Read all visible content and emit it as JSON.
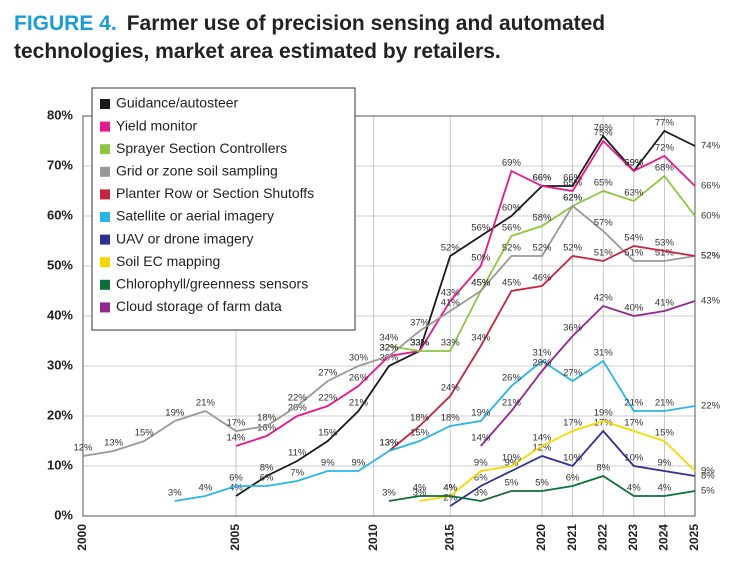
{
  "chart_data": {
    "type": "line",
    "figure_label": "FIGURE 4.",
    "title": "Farmer use of precision sensing and automated technologies, market area estimated by retailers.",
    "x": [
      2000,
      2001,
      2002,
      2003,
      2004,
      2005,
      2006,
      2007,
      2008,
      2009,
      2011,
      2013,
      2015,
      2017,
      2019,
      2020,
      2021,
      2022,
      2023,
      2024,
      2025
    ],
    "xlim": [
      2000,
      2025
    ],
    "xticks": [
      2000,
      2005,
      2010,
      2015,
      2020,
      2021,
      2022,
      2023,
      2024,
      2025
    ],
    "ylim": [
      0,
      80
    ],
    "yticks": [
      {
        "value": 0,
        "label": "0%"
      },
      {
        "value": 10,
        "label": "10%"
      },
      {
        "value": 20,
        "label": "20%"
      },
      {
        "value": 30,
        "label": "30%"
      },
      {
        "value": 40,
        "label": "40%"
      },
      {
        "value": 50,
        "label": "50%"
      },
      {
        "value": 60,
        "label": "60%"
      },
      {
        "value": 70,
        "label": "70%"
      },
      {
        "value": 80,
        "label": "80%"
      }
    ],
    "grid": true,
    "legend": "upper left",
    "series": [
      {
        "name": "Guidance/autosteer",
        "color": "#1a1a1a",
        "values": [
          null,
          null,
          null,
          null,
          null,
          4,
          8,
          11,
          15,
          21,
          30,
          33,
          52,
          56,
          60,
          66,
          66,
          76,
          69,
          77,
          74
        ],
        "value_labels": [
          null,
          null,
          null,
          null,
          null,
          "4%",
          "8%",
          "11%",
          "15%",
          "21%",
          "30%",
          "33%",
          "52%",
          "56%",
          "60%",
          "66%",
          "66%",
          "76%",
          "69%",
          "77%",
          "74%"
        ]
      },
      {
        "name": "Yield monitor",
        "color": "#e6168c",
        "values": [
          null,
          null,
          null,
          null,
          null,
          14,
          16,
          20,
          22,
          26,
          32,
          33,
          43,
          50,
          69,
          66,
          65,
          75,
          69,
          72,
          66
        ],
        "value_labels": [
          null,
          null,
          null,
          null,
          null,
          "14%",
          "16%",
          "20%",
          "22%",
          "26%",
          "32%",
          "33%",
          "43%",
          "50%",
          "69%",
          "66%",
          "65%",
          "75%",
          "69%",
          "72%",
          "66%"
        ]
      },
      {
        "name": "Sprayer Section Controllers",
        "color": "#8dc63f",
        "values": [
          null,
          null,
          null,
          null,
          null,
          null,
          null,
          null,
          null,
          null,
          34,
          33,
          33,
          45,
          56,
          58,
          62,
          65,
          63,
          68,
          60
        ],
        "value_labels": [
          null,
          null,
          null,
          null,
          null,
          null,
          null,
          null,
          null,
          null,
          "34%",
          "33%",
          "33%",
          "45%",
          "56%",
          "58%",
          "62%",
          "65%",
          "63%",
          "68%",
          "60%"
        ]
      },
      {
        "name": "Grid or zone soil sampling",
        "color": "#999999",
        "values": [
          12,
          13,
          15,
          19,
          21,
          17,
          18,
          22,
          27,
          30,
          32,
          37,
          41,
          45,
          52,
          52,
          62,
          57,
          51,
          51,
          52
        ],
        "value_labels": [
          "12%",
          "13%",
          "15%",
          "19%",
          "21%",
          "17%",
          "18%",
          "22%",
          "27%",
          "30%",
          "32%",
          "37%",
          "41%",
          "45%",
          "52%",
          "52%",
          "62%",
          "57%",
          "51%",
          "51%",
          "52%"
        ]
      },
      {
        "name": "Planter Row or Section Shutoffs",
        "color": "#c4253c",
        "values": [
          null,
          null,
          null,
          null,
          null,
          null,
          null,
          null,
          null,
          null,
          13,
          18,
          24,
          34,
          45,
          46,
          52,
          51,
          54,
          53,
          52
        ],
        "value_labels": [
          null,
          null,
          null,
          null,
          null,
          null,
          null,
          null,
          null,
          null,
          "13%",
          "18%",
          "24%",
          "34%",
          "45%",
          "46%",
          "52%",
          "51%",
          "54%",
          "53%",
          "52%"
        ]
      },
      {
        "name": "Satellite or aerial imagery",
        "color": "#29b6e6",
        "values": [
          null,
          null,
          null,
          3,
          4,
          6,
          6,
          7,
          9,
          9,
          13,
          15,
          18,
          19,
          26,
          31,
          27,
          31,
          21,
          21,
          22
        ],
        "value_labels": [
          null,
          null,
          null,
          "3%",
          "4%",
          "6%",
          "6%",
          "7%",
          "9%",
          "9%",
          "13%",
          "15%",
          "18%",
          "19%",
          "26%",
          "31%",
          "27%",
          "31%",
          "21%",
          "21%",
          "22%"
        ]
      },
      {
        "name": "UAV or drone imagery",
        "color": "#2e3192",
        "values": [
          null,
          null,
          null,
          null,
          null,
          null,
          null,
          null,
          null,
          null,
          null,
          null,
          2,
          6,
          9,
          12,
          10,
          17,
          10,
          9,
          8
        ],
        "value_labels": [
          null,
          null,
          null,
          null,
          null,
          null,
          null,
          null,
          null,
          null,
          null,
          null,
          "2%",
          "6%",
          "9%",
          "12%",
          "10%",
          "17%",
          "10%",
          "9%",
          "8%"
        ]
      },
      {
        "name": "Soil EC mapping",
        "color": "#f5d800",
        "values": [
          null,
          null,
          null,
          null,
          null,
          null,
          null,
          null,
          null,
          null,
          null,
          3,
          4,
          9,
          10,
          14,
          17,
          19,
          17,
          15,
          9
        ],
        "value_labels": [
          null,
          null,
          null,
          null,
          null,
          null,
          null,
          null,
          null,
          null,
          null,
          "3%",
          "4%",
          "9%",
          "10%",
          "14%",
          "17%",
          "19%",
          "17%",
          "15%",
          "9%"
        ]
      },
      {
        "name": "Chlorophyll/greenness sensors",
        "color": "#0f6e38",
        "values": [
          null,
          null,
          null,
          null,
          null,
          null,
          null,
          null,
          null,
          null,
          3,
          4,
          4,
          3,
          5,
          5,
          6,
          8,
          4,
          4,
          5
        ],
        "value_labels": [
          null,
          null,
          null,
          null,
          null,
          null,
          null,
          null,
          null,
          null,
          "3%",
          "4%",
          "4%",
          "3%",
          "5%",
          "5%",
          "6%",
          "8%",
          "4%",
          "4%",
          "5%"
        ]
      },
      {
        "name": "Cloud storage of farm data",
        "color": "#93278f",
        "values": [
          null,
          null,
          null,
          null,
          null,
          null,
          null,
          null,
          null,
          null,
          null,
          null,
          null,
          14,
          21,
          29,
          36,
          42,
          40,
          41,
          43
        ],
        "value_labels": [
          null,
          null,
          null,
          null,
          null,
          null,
          null,
          null,
          null,
          null,
          null,
          null,
          null,
          "14%",
          "21%",
          "29%",
          "36%",
          "42%",
          "40%",
          "41%",
          "43%"
        ]
      }
    ]
  }
}
